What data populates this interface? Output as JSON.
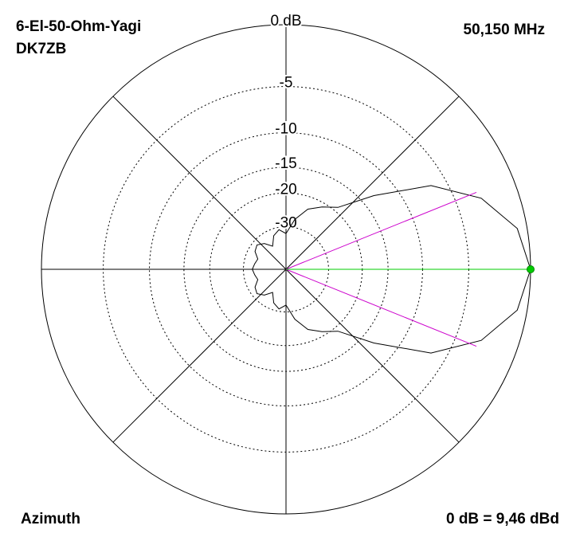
{
  "chart_data": {
    "type": "polar",
    "title": "6-El-50-Ohm-Yagi",
    "subtitle": "DK7ZB",
    "frequency": "50,150 MHz",
    "plane": "Azimuth",
    "reference": "0 dB = 9,46 dBd",
    "scale": "arrl-log",
    "angles": [
      0,
      10,
      20,
      30,
      40,
      50,
      60,
      70,
      80,
      90,
      100,
      110,
      120,
      130,
      140,
      150,
      160,
      170,
      180,
      190,
      200,
      210,
      220,
      230,
      240,
      250,
      260,
      270,
      280,
      290,
      300,
      310,
      320,
      330,
      340,
      350
    ],
    "values": [
      0,
      -0.7,
      -2.8,
      -6.5,
      -13,
      -19,
      -21,
      -23,
      -27,
      -33,
      -31,
      -33,
      -38,
      -34,
      -32,
      -33,
      -36,
      -35,
      -34,
      -35,
      -36,
      -33,
      -32,
      -34,
      -38,
      -33,
      -31,
      -33,
      -27,
      -23,
      -21,
      -19,
      -13,
      -6.5,
      -2.8,
      -0.7
    ],
    "color": "#000000",
    "max_color": "#00cc00",
    "half_power_angles": [
      22,
      -22
    ],
    "half_power_color": "#cc00cc",
    "rticks": [
      {
        "value": 0,
        "label": "0 dB"
      },
      -5,
      -10,
      -15,
      -20,
      -30
    ]
  }
}
